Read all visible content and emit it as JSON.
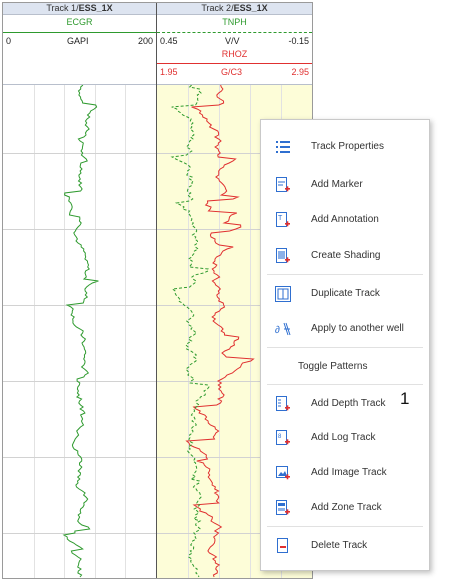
{
  "track1": {
    "title_prefix": "Track 1/",
    "title_bold": "ESS_1X",
    "curve": {
      "name": "ECGR",
      "min": "0",
      "unit": "GAPI",
      "max": "200",
      "color": "#2e9a2e"
    }
  },
  "track2": {
    "title_prefix": "Track 2/",
    "title_bold": "ESS_1X",
    "curve1": {
      "name": "TNPH",
      "min": "0.45",
      "unit": "V/V",
      "max": "-0.15",
      "color": "#2e9a2e"
    },
    "curve2": {
      "name": "RHOZ",
      "min": "1.95",
      "unit": "G/C3",
      "max": "2.95",
      "color": "#e03030"
    }
  },
  "context_menu": {
    "items": [
      {
        "label": "Track Properties",
        "icon": "list-properties-icon"
      },
      {
        "label": "Add Marker",
        "icon": "add-marker-icon"
      },
      {
        "label": "Add Annotation",
        "icon": "add-annotation-icon"
      },
      {
        "label": "Create Shading",
        "icon": "create-shading-icon"
      },
      {
        "label": "Duplicate Track",
        "icon": "duplicate-track-icon"
      },
      {
        "label": "Apply to another well",
        "icon": "apply-well-icon"
      },
      {
        "label": "Toggle Patterns",
        "icon": ""
      },
      {
        "label": "Add Depth Track",
        "icon": "add-depth-track-icon"
      },
      {
        "label": "Add Log Track",
        "icon": "add-log-track-icon"
      },
      {
        "label": "Add Image Track",
        "icon": "add-image-track-icon"
      },
      {
        "label": "Add Zone Track",
        "icon": "add-zone-track-icon"
      },
      {
        "label": "Delete Track",
        "icon": "delete-track-icon"
      }
    ]
  },
  "callout": {
    "number": "1"
  },
  "colors": {
    "accent_blue": "#2f6fd0",
    "accent_red": "#e0404a",
    "track_fill": "#fdfdd8"
  }
}
